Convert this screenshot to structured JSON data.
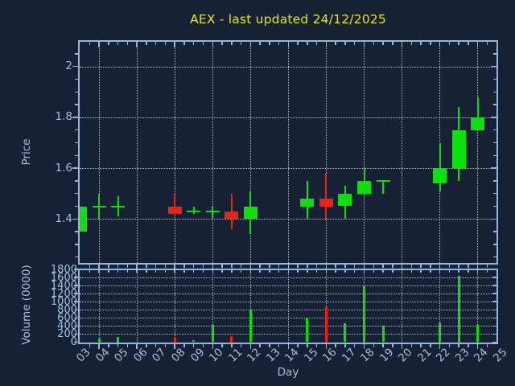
{
  "title": "AEX - last updated 24/12/2025",
  "colors": {
    "background": "#162136",
    "axis": "#93b7dd",
    "tick_label": "#a6c0dd",
    "grid": "#c6ced8",
    "bullish": "#0cdf0c",
    "bearish": "#ee2113",
    "title": "#e8e800"
  },
  "axes": {
    "price": {
      "label": "Price",
      "tick_labels": [
        "1.4",
        "1.6",
        "1.8",
        "2"
      ],
      "tick_values": [
        1.4,
        1.6,
        1.8,
        2.0
      ]
    },
    "day": {
      "label": "Day",
      "tick_labels": [
        "03",
        "04",
        "05",
        "06",
        "07",
        "08",
        "09",
        "10",
        "11",
        "12",
        "13",
        "14",
        "15",
        "16",
        "17",
        "18",
        "19",
        "20",
        "21",
        "22",
        "23",
        "24",
        "25"
      ],
      "tick_values": [
        3,
        4,
        5,
        6,
        7,
        8,
        9,
        10,
        11,
        12,
        13,
        14,
        15,
        16,
        17,
        18,
        19,
        20,
        21,
        22,
        23,
        24,
        25
      ],
      "major_gridline_days": [
        4,
        6,
        8,
        10,
        12,
        14,
        16,
        18,
        20,
        22,
        24
      ]
    },
    "volume": {
      "label": "Volume (0000)",
      "tick_labels": [
        "0",
        "200",
        "400",
        "600",
        "800",
        "1000",
        "1200",
        "1400",
        "1600",
        "1800"
      ],
      "tick_values": [
        0,
        200,
        400,
        600,
        800,
        1000,
        1200,
        1400,
        1600,
        1800
      ],
      "gridline_values": [
        200,
        400,
        600,
        800,
        1000,
        1200,
        1400,
        1600
      ]
    }
  },
  "chart_data": [
    {
      "type": "candlestick",
      "title": "AEX - last updated 24/12/2025",
      "xlabel": "Day",
      "ylabel": "Price",
      "xlim": [
        3,
        25
      ],
      "ylim": [
        1.23,
        2.1
      ],
      "grid": true,
      "candles": [
        {
          "day": 3,
          "open": 1.35,
          "high": 1.45,
          "low": 1.35,
          "close": 1.45
        },
        {
          "day": 4,
          "open": 1.45,
          "high": 1.5,
          "low": 1.4,
          "close": 1.45
        },
        {
          "day": 5,
          "open": 1.45,
          "high": 1.49,
          "low": 1.41,
          "close": 1.45
        },
        {
          "day": 8,
          "open": 1.45,
          "high": 1.5,
          "low": 1.42,
          "close": 1.42
        },
        {
          "day": 9,
          "open": 1.43,
          "high": 1.45,
          "low": 1.42,
          "close": 1.43
        },
        {
          "day": 10,
          "open": 1.43,
          "high": 1.45,
          "low": 1.4,
          "close": 1.43
        },
        {
          "day": 11,
          "open": 1.43,
          "high": 1.5,
          "low": 1.36,
          "close": 1.4
        },
        {
          "day": 12,
          "open": 1.4,
          "high": 1.51,
          "low": 1.34,
          "close": 1.45
        },
        {
          "day": 15,
          "open": 1.45,
          "high": 1.55,
          "low": 1.4,
          "close": 1.48
        },
        {
          "day": 16,
          "open": 1.48,
          "high": 1.58,
          "low": 1.4,
          "close": 1.45
        },
        {
          "day": 17,
          "open": 1.45,
          "high": 1.53,
          "low": 1.4,
          "close": 1.5
        },
        {
          "day": 18,
          "open": 1.5,
          "high": 1.6,
          "low": 1.5,
          "close": 1.55
        },
        {
          "day": 19,
          "open": 1.55,
          "high": 1.55,
          "low": 1.5,
          "close": 1.55
        },
        {
          "day": 22,
          "open": 1.54,
          "high": 1.7,
          "low": 1.51,
          "close": 1.6
        },
        {
          "day": 23,
          "open": 1.6,
          "high": 1.84,
          "low": 1.55,
          "close": 1.75
        },
        {
          "day": 24,
          "open": 1.75,
          "high": 1.88,
          "low": 1.75,
          "close": 1.8
        }
      ]
    },
    {
      "type": "bar",
      "xlabel": "Day",
      "ylabel": "Volume (0000)",
      "xlim": [
        3,
        25
      ],
      "ylim": [
        0,
        1800
      ],
      "grid": true,
      "bars": [
        {
          "day": 4,
          "value": 85
        },
        {
          "day": 5,
          "value": 130
        },
        {
          "day": 8,
          "value": 105
        },
        {
          "day": 9,
          "value": 55
        },
        {
          "day": 10,
          "value": 420
        },
        {
          "day": 11,
          "value": 160
        },
        {
          "day": 12,
          "value": 790
        },
        {
          "day": 15,
          "value": 610
        },
        {
          "day": 16,
          "value": 860
        },
        {
          "day": 17,
          "value": 475
        },
        {
          "day": 18,
          "value": 1390
        },
        {
          "day": 19,
          "value": 400
        },
        {
          "day": 22,
          "value": 495
        },
        {
          "day": 23,
          "value": 1640
        },
        {
          "day": 24,
          "value": 430
        }
      ]
    }
  ]
}
